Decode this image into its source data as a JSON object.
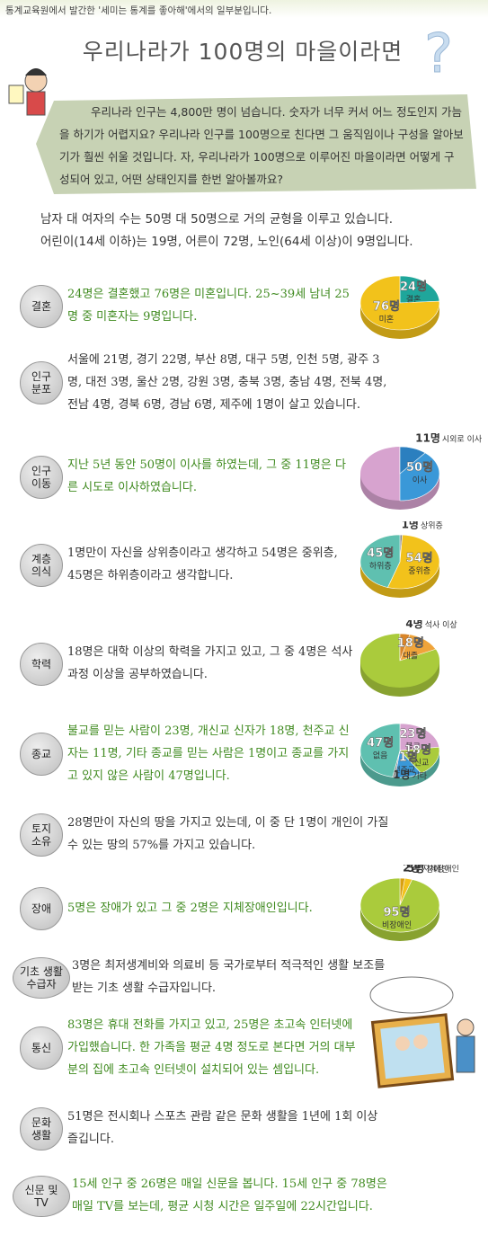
{
  "header": {
    "note": "통계교육원에서 발간한 '세미는 통계를 좋아해'에서의 일부분입니다.",
    "title": "우리나라가 100명의 마을이라면"
  },
  "intro": "우리나라 인구는 4,800만 명이 넘습니다. 숫자가 너무 커서 어느 정도인지 가늠을 하기가 어렵지요? 우리나라 인구를 100명으로 친다면 그 움직임이나 구성을 알아보기가 훨씬 쉬울 것입니다. 자, 우리나라가 100명으로 이루어진 마을이라면 어떻게 구성되어 있고, 어떤 상태인지를 한번 알아볼까요?",
  "summary": [
    "남자 대 여자의 수는 50명 대 50명으로 거의 균형을 이루고 있습니다.",
    "어린이(14세 이하)는 19명, 어른이 72명, 노인(64세 이상)이 9명입니다."
  ],
  "sections": [
    {
      "label": [
        "결혼"
      ],
      "color": "#3f8a1f",
      "text": "24명은 결혼했고 76명은 미혼입니다. 25~39세 남녀 25명 중 미혼자는 9명입니다.",
      "pie": {
        "base_color": "#f2c21b",
        "slices": [
          {
            "name": "결혼",
            "value": 24,
            "value_label": "24명",
            "color": "#1fa69b"
          },
          {
            "name": "미혼",
            "value": 76,
            "value_label": "76명",
            "color": "#f2c21b"
          }
        ]
      }
    },
    {
      "label": [
        "인구",
        "분포"
      ],
      "color": "#333333",
      "text": "서울에 21명, 경기 22명, 부산 8명, 대구 5명, 인천 5명, 광주 3명, 대전 3명, 울산 2명, 강원 3명, 충북 3명, 충남 4명, 전북 4명, 전남 4명, 경북 6명, 경남 6명, 제주에 1명이 살고 있습니다."
    },
    {
      "label": [
        "인구",
        "이동"
      ],
      "color": "#3f8a1f",
      "text": "지난 5년 동안 50명이 이사를 하였는데, 그 중 11명은 다른 시도로 이사하였습니다.",
      "pie": {
        "base_color": "#d7a3cf",
        "slices": [
          {
            "name": "이사",
            "value": 50,
            "value_label": "50명",
            "color": "#3a98d8",
            "parts": [
              {
                "name": "시외로 이사",
                "value": 11,
                "value_label": "11명",
                "color": "#2b7fbf"
              }
            ]
          }
        ]
      }
    },
    {
      "label": [
        "계층",
        "의식"
      ],
      "color": "#333333",
      "text": "1명만이 자신을 상위층이라고 생각하고 54명은 중위층, 45명은 하위층이라고 생각합니다.",
      "pie": {
        "base_color": "#f2c21b",
        "slices": [
          {
            "name": "상위층",
            "value": 1,
            "value_label": "1명",
            "color": "#888888"
          },
          {
            "name": "중위층",
            "value": 54,
            "value_label": "54명",
            "color": "#f2c21b"
          },
          {
            "name": "하위층",
            "value": 45,
            "value_label": "45명",
            "color": "#5fc0b0"
          }
        ]
      }
    },
    {
      "label": [
        "학력"
      ],
      "color": "#333333",
      "text": "18명은 대학 이상의 학력을 가지고 있고, 그 중 4명은 석사 과정 이상을 공부하였습니다.",
      "pie": {
        "base_color": "#aacb3c",
        "slices": [
          {
            "name": "대졸",
            "value": 18,
            "value_label": "18명",
            "color": "#f0a43a",
            "parts": [
              {
                "name": "석사 이상",
                "value": 4,
                "value_label": "4명",
                "color": "#d9852a"
              }
            ]
          }
        ]
      }
    },
    {
      "label": [
        "종교"
      ],
      "color": "#3f8a1f",
      "text": "불교를 믿는 사람이 23명, 개신교 신자가 18명, 천주교 신자는 11명, 기타 종교를 믿는 사람은 1명이고 종교를 가지고 있지 않은 사람이 47명입니다.",
      "pie": {
        "base_color": "#5fc0b0",
        "slices": [
          {
            "name": "불교",
            "value": 23,
            "value_label": "23명",
            "color": "#d7a3cf"
          },
          {
            "name": "개신교",
            "value": 18,
            "value_label": "18명",
            "color": "#aacb3c"
          },
          {
            "name": "천주교",
            "value": 11,
            "value_label": "11명",
            "color": "#3a98d8"
          },
          {
            "name": "기타",
            "value": 1,
            "value_label": "1명",
            "color": "#888888"
          },
          {
            "name": "없음",
            "value": 47,
            "value_label": "47명",
            "color": "#5fc0b0"
          }
        ]
      }
    },
    {
      "label": [
        "토지",
        "소유"
      ],
      "color": "#333333",
      "text": "28명만이 자신의 땅을 가지고 있는데, 이 중 단 1명이 개인이 가질 수 있는 땅의 57%를 가지고 있습니다."
    },
    {
      "label": [
        "장애"
      ],
      "color": "#3f8a1f",
      "text": "5명은 장애가 있고 그 중 2명은 지체장애인입니다.",
      "pie": {
        "base_color": "#aacb3c",
        "slices": [
          {
            "name": "장애인",
            "value": 5,
            "value_label": "5명",
            "color": "#f2c21b",
            "parts": [
              {
                "name": "지체장애인",
                "value": 2,
                "value_label": "2명",
                "color": "#d9a010"
              }
            ]
          },
          {
            "name": "비장애인",
            "value": 95,
            "value_label": "95명",
            "color": "#aacb3c"
          }
        ]
      }
    },
    {
      "label": [
        "기초 생활",
        "수급자"
      ],
      "color": "#333333",
      "text": "3명은 최저생계비와 의료비 등 국가로부터 적극적인 생활 보조를 받는 기초 생활 수급자입니다."
    },
    {
      "label": [
        "통신"
      ],
      "color": "#3f8a1f",
      "text": "83명은 휴대 전화를 가지고 있고, 25명은 초고속 인터넷에 가입했습니다. 한 가족을 평균 4명 정도로 본다면 거의 대부분의 집에 초고속 인터넷이 설치되어 있는 셈입니다."
    },
    {
      "label": [
        "문화",
        "생활"
      ],
      "color": "#333333",
      "text": "51명은 전시회나 스포츠 관람 같은 문화 생활을 1년에 1회 이상 즐깁니다."
    },
    {
      "label": [
        "신문 및",
        "TV"
      ],
      "color": "#3f8a1f",
      "text": "15세 인구 중 26명은 매일 신문을 봅니다. 15세 인구 중 78명은 매일 TV를 보는데, 평균 시청 시간은 일주일에 22시간입니다."
    }
  ]
}
